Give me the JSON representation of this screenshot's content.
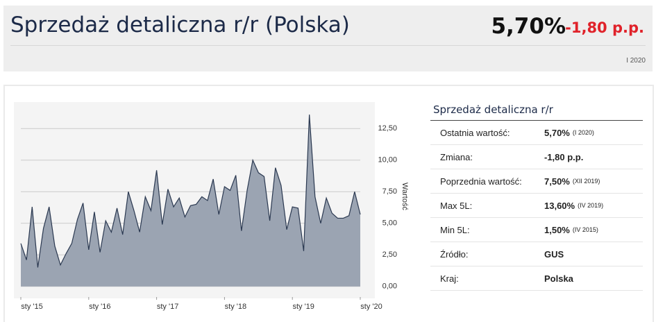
{
  "header": {
    "title": "Sprzedaż detaliczna r/r (Polska)",
    "value": "5,70%",
    "change": "-1,80 p.p.",
    "period": "I 2020"
  },
  "chart_data": {
    "type": "area",
    "y_label": "Wartość",
    "color": "#9ba4b2",
    "line_color": "#2a3850",
    "categories": [
      "sty '15",
      null,
      null,
      null,
      null,
      null,
      null,
      null,
      null,
      null,
      null,
      null,
      "sty '16",
      null,
      null,
      null,
      null,
      null,
      null,
      null,
      null,
      null,
      null,
      null,
      "sty '17",
      null,
      null,
      null,
      null,
      null,
      null,
      null,
      null,
      null,
      null,
      null,
      "sty '18",
      null,
      null,
      null,
      null,
      null,
      null,
      null,
      null,
      null,
      null,
      null,
      "sty '19",
      null,
      null,
      null,
      null,
      null,
      null,
      null,
      null,
      null,
      null,
      null,
      "sty '20"
    ],
    "values": [
      3.4,
      2.1,
      6.3,
      1.5,
      4.6,
      6.3,
      3.2,
      1.7,
      2.6,
      3.4,
      5.3,
      6.6,
      2.9,
      5.9,
      2.7,
      5.2,
      4.3,
      6.2,
      4.1,
      7.5,
      6.0,
      4.3,
      7.1,
      6.0,
      9.2,
      4.9,
      7.7,
      6.3,
      7.0,
      5.5,
      6.4,
      6.5,
      7.1,
      6.8,
      8.5,
      5.7,
      7.9,
      7.6,
      8.8,
      4.4,
      7.6,
      10.0,
      9.0,
      8.7,
      5.2,
      9.4,
      8.0,
      4.5,
      6.3,
      6.2,
      2.8,
      13.6,
      7.1,
      5.0,
      7.0,
      5.8,
      5.4,
      5.4,
      5.6,
      7.5,
      5.7
    ],
    "ylim": [
      -0.4,
      14.6
    ],
    "yticks": [
      {
        "value": 0,
        "label": "0,00"
      },
      {
        "value": 2.5,
        "label": "2,50"
      },
      {
        "value": 5,
        "label": "5,00"
      },
      {
        "value": 7.5,
        "label": "7,50"
      },
      {
        "value": 10,
        "label": "10,00"
      },
      {
        "value": 12.5,
        "label": "12,50"
      }
    ],
    "grid": true
  },
  "info": {
    "title": "Sprzedaż detaliczna r/r",
    "rows": [
      {
        "label": "Ostatnia wartość:",
        "value": "5,70%",
        "note": "(I 2020)"
      },
      {
        "label": "Zmiana:",
        "value": "-1,80 p.p."
      },
      {
        "label": "Poprzednia wartość:",
        "value": "7,50%",
        "note": "(XII 2019)"
      },
      {
        "label": "Max 5L:",
        "value": "13,60%",
        "note": "(IV 2019)"
      },
      {
        "label": "Min 5L:",
        "value": "1,50%",
        "note": "(IV 2015)"
      },
      {
        "label": "Źródło:",
        "value": "GUS"
      },
      {
        "label": "Kraj:",
        "value": "Polska"
      }
    ]
  }
}
